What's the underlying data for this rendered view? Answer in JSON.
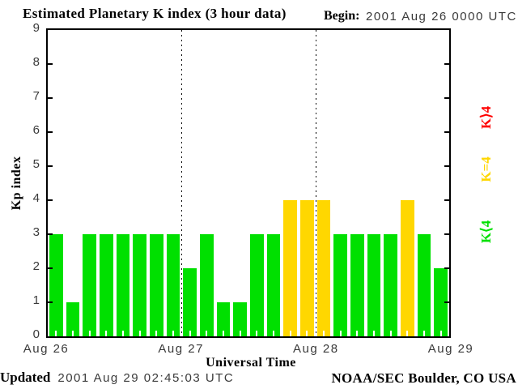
{
  "title": "Estimated Planetary K index (3 hour data)",
  "begin": {
    "label": "Begin:",
    "value": "2001 Aug 26 0000 UTC"
  },
  "footer": {
    "updated_label": "Updated",
    "updated_value": "2001 Aug 29 02:45:03 UTC",
    "credit": "NOAA/SEC Boulder, CO USA"
  },
  "chart_data": {
    "type": "bar",
    "title": "Estimated Planetary K index (3 hour data)",
    "xlabel": "Universal Time",
    "ylabel": "Kp index",
    "ylim": [
      0,
      9
    ],
    "y_ticks": [
      0,
      1,
      2,
      3,
      4,
      5,
      6,
      7,
      8,
      9
    ],
    "x_tick_labels": [
      "Aug 26",
      "Aug 27",
      "Aug 28",
      "Aug 29"
    ],
    "interval_hours": 3,
    "grid": "dotted vertical lines at day boundaries",
    "days": [
      {
        "date": "2001 Aug 26",
        "values": [
          3,
          1,
          3,
          3,
          3,
          3,
          3,
          3
        ]
      },
      {
        "date": "2001 Aug 27",
        "values": [
          2,
          3,
          1,
          1,
          3,
          3,
          4,
          4
        ]
      },
      {
        "date": "2001 Aug 28",
        "values": [
          4,
          3,
          3,
          3,
          3,
          4,
          3,
          2
        ]
      }
    ],
    "values": [
      3,
      1,
      3,
      3,
      3,
      3,
      3,
      3,
      2,
      3,
      1,
      1,
      3,
      3,
      4,
      4,
      4,
      3,
      3,
      3,
      3,
      4,
      3,
      2
    ],
    "colors": {
      "below4": "#00e000",
      "equal4": "#ffd700",
      "above4": "#ff0000"
    },
    "legend": [
      {
        "label": "K⟩4",
        "color": "#ff0000"
      },
      {
        "label": "K=4",
        "color": "#ffd700"
      },
      {
        "label": "K⟨4",
        "color": "#00e000"
      }
    ],
    "legend_position": "right, rotated 90°"
  }
}
